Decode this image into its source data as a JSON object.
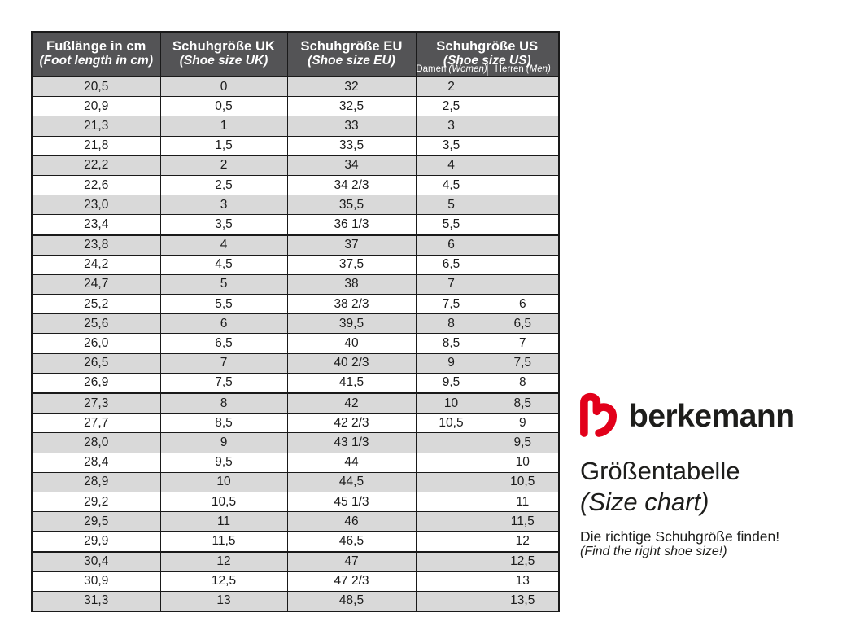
{
  "chart_data": {
    "type": "table",
    "title": "Größentabelle (Size chart)",
    "columns": [
      {
        "title": "Fußlänge in cm",
        "subtitle": "(Foot length in cm)"
      },
      {
        "title": "Schuhgröße UK",
        "subtitle": "(Shoe size UK)"
      },
      {
        "title": "Schuhgröße EU",
        "subtitle": "(Shoe size EU)"
      },
      {
        "title": "Schuhgröße US",
        "subtitle": "(Shoe size US)",
        "sub_columns": [
          {
            "label": "Damen",
            "note": "(Women)"
          },
          {
            "label": "Herren",
            "note": "(Men)"
          }
        ]
      }
    ],
    "rows": [
      [
        "20,5",
        "0",
        "32",
        "2",
        ""
      ],
      [
        "20,9",
        "0,5",
        "32,5",
        "2,5",
        ""
      ],
      [
        "21,3",
        "1",
        "33",
        "3",
        ""
      ],
      [
        "21,8",
        "1,5",
        "33,5",
        "3,5",
        ""
      ],
      [
        "22,2",
        "2",
        "34",
        "4",
        ""
      ],
      [
        "22,6",
        "2,5",
        "34 2/3",
        "4,5",
        ""
      ],
      [
        "23,0",
        "3",
        "35,5",
        "5",
        ""
      ],
      [
        "23,4",
        "3,5",
        "36 1/3",
        "5,5",
        ""
      ],
      [
        "23,8",
        "4",
        "37",
        "6",
        ""
      ],
      [
        "24,2",
        "4,5",
        "37,5",
        "6,5",
        ""
      ],
      [
        "24,7",
        "5",
        "38",
        "7",
        ""
      ],
      [
        "25,2",
        "5,5",
        "38 2/3",
        "7,5",
        "6"
      ],
      [
        "25,6",
        "6",
        "39,5",
        "8",
        "6,5"
      ],
      [
        "26,0",
        "6,5",
        "40",
        "8,5",
        "7"
      ],
      [
        "26,5",
        "7",
        "40 2/3",
        "9",
        "7,5"
      ],
      [
        "26,9",
        "7,5",
        "41,5",
        "9,5",
        "8"
      ],
      [
        "27,3",
        "8",
        "42",
        "10",
        "8,5"
      ],
      [
        "27,7",
        "8,5",
        "42 2/3",
        "10,5",
        "9"
      ],
      [
        "28,0",
        "9",
        "43 1/3",
        "",
        "9,5"
      ],
      [
        "28,4",
        "9,5",
        "44",
        "",
        "10"
      ],
      [
        "28,9",
        "10",
        "44,5",
        "",
        "10,5"
      ],
      [
        "29,2",
        "10,5",
        "45 1/3",
        "",
        "11"
      ],
      [
        "29,5",
        "11",
        "46",
        "",
        "11,5"
      ],
      [
        "29,9",
        "11,5",
        "46,5",
        "",
        "12"
      ],
      [
        "30,4",
        "12",
        "47",
        "",
        "12,5"
      ],
      [
        "30,9",
        "12,5",
        "47 2/3",
        "",
        "13"
      ],
      [
        "31,3",
        "13",
        "48,5",
        "",
        "13,5"
      ]
    ],
    "group_separator_rows": [
      8,
      16,
      24
    ],
    "layout": {
      "grid": "on",
      "striped_rows": true,
      "header_position": "top"
    }
  },
  "brand": {
    "wordmark": "berkemann",
    "logo_color": "#e2001a"
  },
  "panel": {
    "title": "Größentabelle",
    "title_en": "(Size chart)",
    "tagline": "Die richtige Schuhgröße finden!",
    "tagline_en": "(Find the right shoe size!)"
  },
  "colors": {
    "header_bg": "#545456",
    "header_text": "#ffffff",
    "row_alt": "#d9d9d9",
    "row_base": "#ffffff",
    "border": "#1a1a1a",
    "text": "#1d1d1b",
    "brand_red": "#e2001a"
  }
}
